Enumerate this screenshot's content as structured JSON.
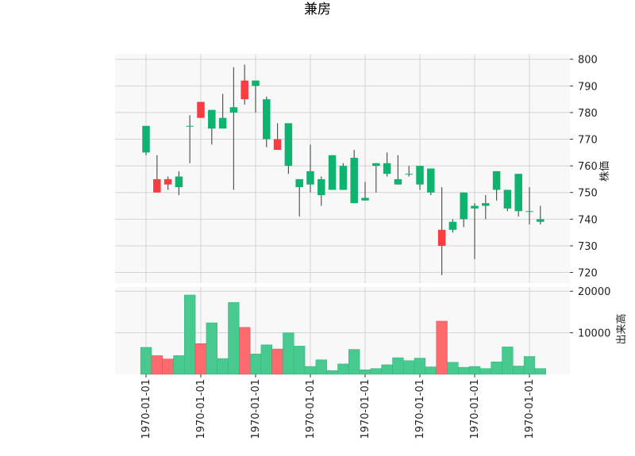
{
  "chart_data": {
    "type": "candlestick",
    "title": "兼房",
    "price_panel": {
      "ylabel": "株価",
      "ylim": [
        716,
        802
      ],
      "yticks": [
        720,
        730,
        740,
        750,
        760,
        770,
        780,
        790,
        800
      ]
    },
    "volume_panel": {
      "ylabel": "出来高",
      "ylim": [
        0,
        21000
      ],
      "yticks": [
        10000,
        20000
      ]
    },
    "x_tick_labels": [
      "1970-01-01",
      "1970-01-01",
      "1970-01-01",
      "1970-01-01",
      "1970-01-01",
      "1970-01-01",
      "1970-01-01",
      "1970-01-01"
    ],
    "x_tick_index": [
      0,
      5,
      10,
      15,
      20,
      25,
      30,
      35
    ],
    "grid": true,
    "colors": {
      "up": "#0eb36f",
      "down": "#f93b42",
      "wick": "#555555",
      "up_volume": "#47c98f",
      "down_volume": "#fc6a6e",
      "panel_bg": "#f8f8f8",
      "grid": "#d3d3d3"
    },
    "candles": [
      {
        "o": 765,
        "h": 775,
        "l": 764,
        "c": 775,
        "v": 6500
      },
      {
        "o": 755,
        "h": 764,
        "l": 750,
        "c": 750,
        "v": 4500
      },
      {
        "o": 755,
        "h": 756,
        "l": 751,
        "c": 753,
        "v": 3700
      },
      {
        "o": 752,
        "h": 758,
        "l": 749,
        "c": 756,
        "v": 4500
      },
      {
        "o": 775,
        "h": 779,
        "l": 761,
        "c": 775,
        "v": 19100
      },
      {
        "o": 784,
        "h": 784,
        "l": 778,
        "c": 778,
        "v": 7400
      },
      {
        "o": 774,
        "h": 781,
        "l": 768,
        "c": 781,
        "v": 12400
      },
      {
        "o": 774,
        "h": 787,
        "l": 774,
        "c": 778,
        "v": 3800
      },
      {
        "o": 780,
        "h": 797,
        "l": 751,
        "c": 782,
        "v": 17300
      },
      {
        "o": 792,
        "h": 798,
        "l": 783,
        "c": 785,
        "v": 11300
      },
      {
        "o": 790,
        "h": 792,
        "l": 780,
        "c": 792,
        "v": 4900
      },
      {
        "o": 770,
        "h": 786,
        "l": 767,
        "c": 785,
        "v": 7100
      },
      {
        "o": 770,
        "h": 776,
        "l": 766,
        "c": 766,
        "v": 6100
      },
      {
        "o": 760,
        "h": 776,
        "l": 757,
        "c": 776,
        "v": 10000
      },
      {
        "o": 752,
        "h": 755,
        "l": 741,
        "c": 755,
        "v": 6800
      },
      {
        "o": 753,
        "h": 768,
        "l": 750,
        "c": 758,
        "v": 1900
      },
      {
        "o": 749,
        "h": 756,
        "l": 745,
        "c": 755,
        "v": 3500
      },
      {
        "o": 751,
        "h": 764,
        "l": 751,
        "c": 764,
        "v": 900
      },
      {
        "o": 751,
        "h": 761,
        "l": 751,
        "c": 760,
        "v": 2500
      },
      {
        "o": 746,
        "h": 766,
        "l": 746,
        "c": 763,
        "v": 6000
      },
      {
        "o": 747,
        "h": 754,
        "l": 747,
        "c": 748,
        "v": 1100
      },
      {
        "o": 760,
        "h": 761,
        "l": 750,
        "c": 761,
        "v": 1400
      },
      {
        "o": 757,
        "h": 765,
        "l": 756,
        "c": 761,
        "v": 2300
      },
      {
        "o": 753,
        "h": 764,
        "l": 753,
        "c": 755,
        "v": 4000
      },
      {
        "o": 757,
        "h": 760,
        "l": 756,
        "c": 757,
        "v": 3300
      },
      {
        "o": 753,
        "h": 760,
        "l": 751,
        "c": 760,
        "v": 3900
      },
      {
        "o": 750,
        "h": 759,
        "l": 749,
        "c": 759,
        "v": 1800
      },
      {
        "o": 736,
        "h": 752,
        "l": 719,
        "c": 730,
        "v": 12800
      },
      {
        "o": 736,
        "h": 740,
        "l": 735,
        "c": 739,
        "v": 2900
      },
      {
        "o": 740,
        "h": 750,
        "l": 737,
        "c": 750,
        "v": 1700
      },
      {
        "o": 744,
        "h": 746,
        "l": 725,
        "c": 745,
        "v": 1900
      },
      {
        "o": 745,
        "h": 749,
        "l": 740,
        "c": 746,
        "v": 1400
      },
      {
        "o": 751,
        "h": 758,
        "l": 747,
        "c": 758,
        "v": 3000
      },
      {
        "o": 744,
        "h": 751,
        "l": 743,
        "c": 751,
        "v": 6600
      },
      {
        "o": 743,
        "h": 757,
        "l": 741,
        "c": 757,
        "v": 2000
      },
      {
        "o": 743,
        "h": 752,
        "l": 738,
        "c": 743,
        "v": 4300
      },
      {
        "o": 739,
        "h": 745,
        "l": 738,
        "c": 740,
        "v": 1400
      }
    ]
  }
}
